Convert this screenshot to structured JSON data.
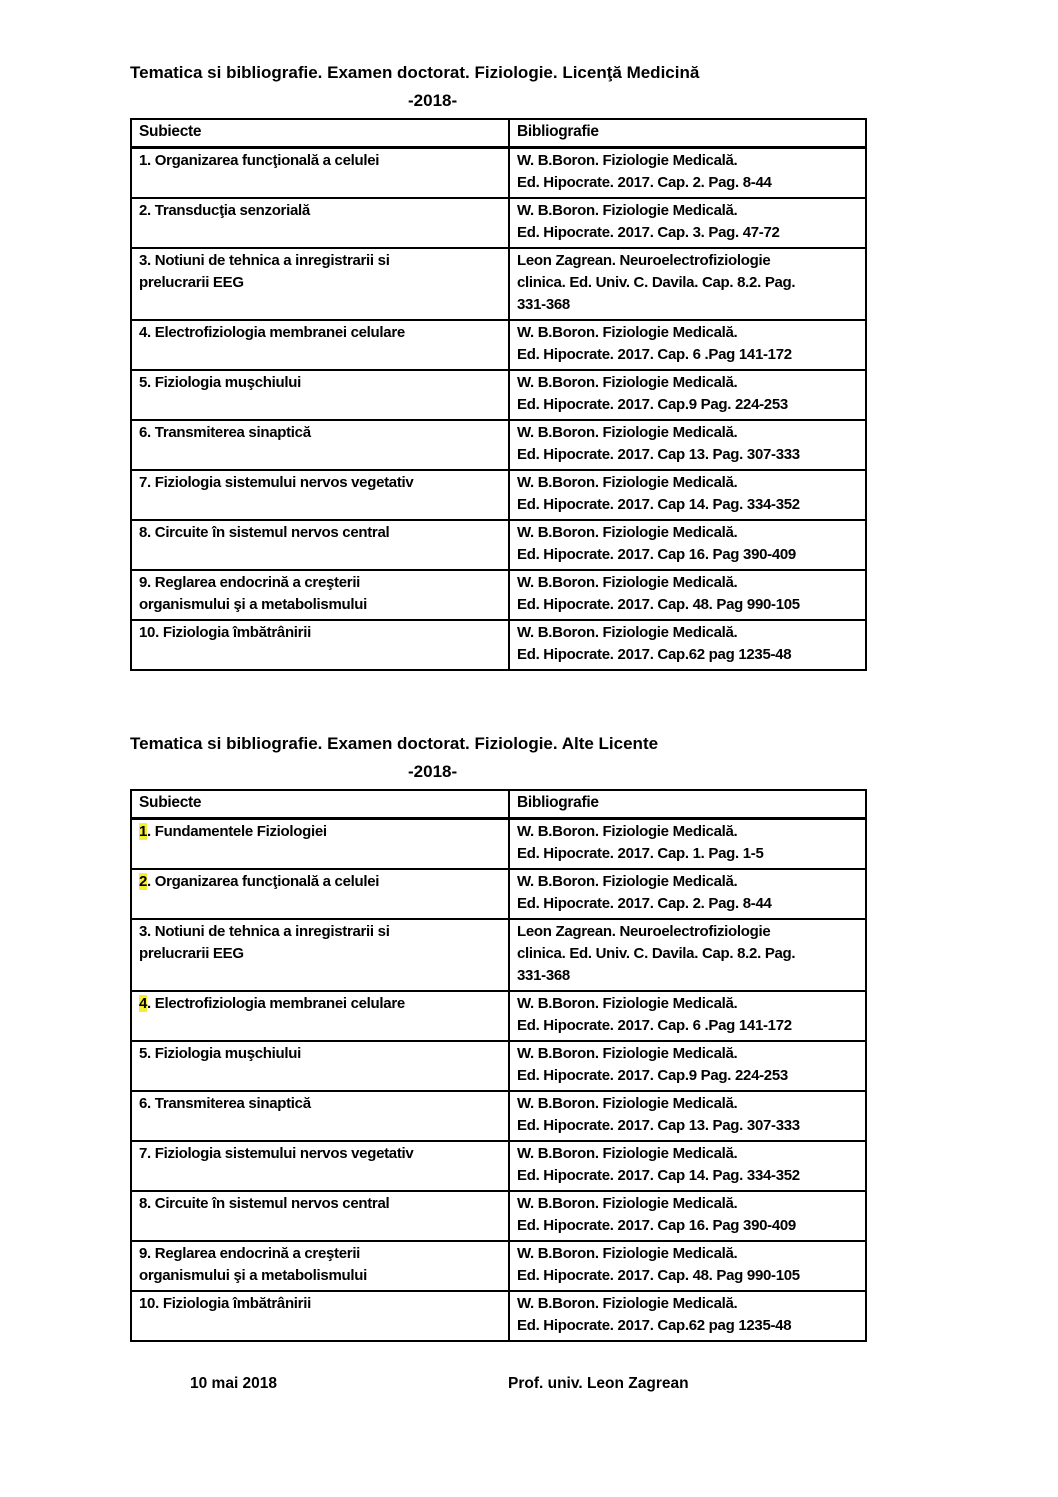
{
  "page": {
    "background": "#ffffff",
    "text_color": "#000000",
    "highlight_color": "#f7ee33"
  },
  "sections": [
    {
      "title": "Tematica si bibliografie. Examen doctorat. Fiziologie. Licenţă Medicină",
      "subtitle": "-2018-",
      "table": {
        "headers": [
          "Subiecte",
          "Bibliografie"
        ],
        "rows": [
          {
            "num": "1",
            "highlight": false,
            "subject": ". Organizarea funcţională a celulei",
            "biblio": "W. B.Boron. Fiziologie Medicală.\nEd. Hipocrate. 2017. Cap. 2. Pag. 8-44"
          },
          {
            "num": "2",
            "highlight": false,
            "subject": ". Transducţia senzorială",
            "biblio": "W. B.Boron. Fiziologie Medicală.\nEd. Hipocrate. 2017. Cap. 3. Pag. 47-72"
          },
          {
            "num": "3",
            "highlight": false,
            "subject": ". Notiuni de tehnica a inregistrarii si\nprelucrarii EEG",
            "biblio": "Leon Zagrean. Neuroelectrofiziologie\nclinica. Ed. Univ. C. Davila. Cap. 8.2. Pag.\n331-368"
          },
          {
            "num": "4",
            "highlight": false,
            "subject": ". Electrofiziologia membranei celulare",
            "biblio": "W. B.Boron. Fiziologie Medicală.\nEd. Hipocrate. 2017. Cap. 6 .Pag 141-172"
          },
          {
            "num": "5",
            "highlight": false,
            "subject": ". Fiziologia muşchiului",
            "biblio": "W. B.Boron. Fiziologie Medicală.\nEd. Hipocrate. 2017. Cap.9 Pag. 224-253"
          },
          {
            "num": "6",
            "highlight": false,
            "subject": ". Transmiterea sinaptică",
            "biblio": "W. B.Boron. Fiziologie Medicală.\nEd. Hipocrate. 2017. Cap 13. Pag. 307-333"
          },
          {
            "num": "7",
            "highlight": false,
            "subject": ". Fiziologia sistemului nervos vegetativ",
            "biblio": "W. B.Boron. Fiziologie Medicală.\nEd. Hipocrate. 2017. Cap 14. Pag. 334-352"
          },
          {
            "num": "8",
            "highlight": false,
            "subject": ". Circuite în sistemul nervos central",
            "biblio": "W. B.Boron. Fiziologie Medicală.\nEd. Hipocrate. 2017. Cap 16. Pag 390-409"
          },
          {
            "num": "9",
            "highlight": false,
            "subject": ". Reglarea endocrină a creşterii\norganismului şi a metabolismului",
            "biblio": "W. B.Boron. Fiziologie Medicală.\nEd. Hipocrate. 2017. Cap. 48. Pag 990-105"
          },
          {
            "num": "10",
            "highlight": false,
            "subject": ". Fiziologia îmbătrânirii",
            "biblio": "W. B.Boron. Fiziologie Medicală.\nEd. Hipocrate. 2017. Cap.62 pag 1235-48"
          }
        ]
      }
    },
    {
      "title": "Tematica si bibliografie. Examen doctorat. Fiziologie. Alte Licente",
      "subtitle": "-2018-",
      "table": {
        "headers": [
          "Subiecte",
          "Bibliografie"
        ],
        "rows": [
          {
            "num": "1",
            "highlight": true,
            "subject": ". Fundamentele Fiziologiei",
            "biblio": "W. B.Boron. Fiziologie Medicală.\nEd. Hipocrate. 2017. Cap. 1. Pag. 1-5"
          },
          {
            "num": "2",
            "highlight": true,
            "subject": ". Organizarea funcţională a celulei",
            "biblio": "W. B.Boron. Fiziologie Medicală.\nEd. Hipocrate. 2017. Cap. 2. Pag. 8-44"
          },
          {
            "num": "3",
            "highlight": false,
            "subject": ". Notiuni de tehnica a inregistrarii si\nprelucrarii EEG",
            "biblio": "Leon Zagrean. Neuroelectrofiziologie\nclinica. Ed. Univ. C. Davila. Cap. 8.2. Pag.\n331-368"
          },
          {
            "num": "4",
            "highlight": true,
            "subject": ". Electrofiziologia membranei celulare",
            "biblio": "W. B.Boron. Fiziologie Medicală.\nEd. Hipocrate. 2017. Cap. 6 .Pag 141-172"
          },
          {
            "num": "5",
            "highlight": false,
            "subject": ". Fiziologia muşchiului",
            "biblio": "W. B.Boron. Fiziologie Medicală.\nEd. Hipocrate. 2017. Cap.9 Pag. 224-253"
          },
          {
            "num": "6",
            "highlight": false,
            "subject": ". Transmiterea sinaptică",
            "biblio": "W. B.Boron. Fiziologie Medicală.\nEd. Hipocrate. 2017. Cap 13. Pag. 307-333"
          },
          {
            "num": "7",
            "highlight": false,
            "subject": ". Fiziologia sistemului nervos vegetativ",
            "biblio": "W. B.Boron. Fiziologie Medicală.\nEd. Hipocrate. 2017. Cap 14. Pag. 334-352"
          },
          {
            "num": "8",
            "highlight": false,
            "subject": ". Circuite în sistemul nervos central",
            "biblio": "W. B.Boron. Fiziologie Medicală.\nEd. Hipocrate. 2017. Cap 16. Pag 390-409"
          },
          {
            "num": "9",
            "highlight": false,
            "subject": ". Reglarea endocrină a creşterii\norganismului şi a metabolismului",
            "biblio": "W. B.Boron. Fiziologie Medicală.\nEd. Hipocrate. 2017. Cap. 48. Pag 990-105"
          },
          {
            "num": "10",
            "highlight": false,
            "subject": ". Fiziologia îmbătrânirii",
            "biblio": "W. B.Boron. Fiziologie Medicală.\nEd. Hipocrate. 2017. Cap.62 pag 1235-48"
          }
        ]
      }
    }
  ],
  "footer": {
    "date": "10 mai 2018",
    "signature": "Prof. univ. Leon Zagrean"
  }
}
